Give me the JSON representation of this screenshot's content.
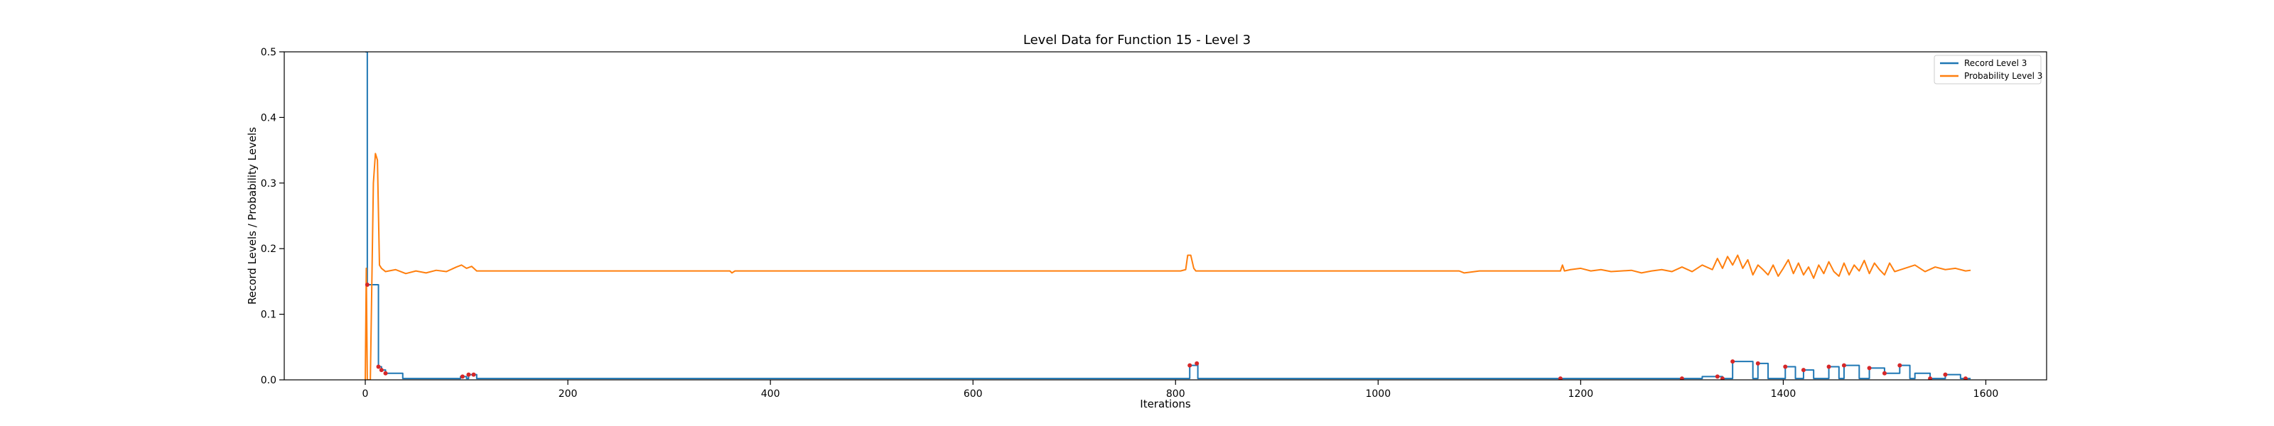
{
  "chart_data": {
    "type": "line",
    "title": "Level Data for Function 15 - Level 3",
    "xlabel": "Iterations",
    "ylabel": "Record Levels / Probability Levels",
    "xlim": [
      -80,
      1660
    ],
    "ylim": [
      0,
      0.5
    ],
    "xticks": [
      0,
      200,
      400,
      600,
      800,
      1000,
      1200,
      1400,
      1600
    ],
    "yticks": [
      0.0,
      0.1,
      0.2,
      0.3,
      0.4,
      0.5
    ],
    "xtick_labels": [
      "0",
      "200",
      "400",
      "600",
      "800",
      "1000",
      "1200",
      "1400",
      "1600"
    ],
    "ytick_labels": [
      "0.0",
      "0.1",
      "0.2",
      "0.3",
      "0.4",
      "0.5"
    ],
    "grid": false,
    "legend_position": "top-right",
    "series": [
      {
        "name": "Record Level 3",
        "color": "#1f77b4",
        "style": "step",
        "x": [
          0,
          1,
          2,
          3,
          12,
          13,
          14,
          16,
          18,
          20,
          22,
          35,
          37,
          40,
          60,
          80,
          90,
          94,
          96,
          100,
          102,
          107,
          110,
          140,
          400,
          800,
          812,
          814,
          818,
          821,
          822,
          900,
          1100,
          1180,
          1190,
          1192,
          1300,
          1320,
          1335,
          1340,
          1345,
          1350,
          1365,
          1370,
          1375,
          1380,
          1385,
          1400,
          1402,
          1408,
          1412,
          1418,
          1420,
          1422,
          1430,
          1435,
          1445,
          1450,
          1455,
          1460,
          1470,
          1475,
          1485,
          1490,
          1500,
          1505,
          1515,
          1520,
          1525,
          1530,
          1535,
          1545,
          1550,
          1560,
          1570,
          1575,
          1580,
          1585
        ],
        "y": [
          0.5,
          0.5,
          0.145,
          0.145,
          0.145,
          0.02,
          0.02,
          0.015,
          0.015,
          0.01,
          0.01,
          0.01,
          0.002,
          0.002,
          0.002,
          0.002,
          0.002,
          0.005,
          0.005,
          0.002,
          0.008,
          0.008,
          0.002,
          0.002,
          0.002,
          0.002,
          0.002,
          0.022,
          0.022,
          0.025,
          0.002,
          0.002,
          0.002,
          0.002,
          0.002,
          0.002,
          0.002,
          0.005,
          0.005,
          0.002,
          0.002,
          0.028,
          0.028,
          0.002,
          0.025,
          0.025,
          0.002,
          0.002,
          0.02,
          0.02,
          0.002,
          0.002,
          0.015,
          0.015,
          0.002,
          0.002,
          0.02,
          0.02,
          0.002,
          0.022,
          0.022,
          0.002,
          0.018,
          0.018,
          0.01,
          0.01,
          0.022,
          0.022,
          0.002,
          0.01,
          0.01,
          0.002,
          0.002,
          0.008,
          0.008,
          0.002,
          0.002,
          0.002
        ]
      },
      {
        "name": "Probability Level 3",
        "color": "#ff7f0e",
        "style": "line",
        "x": [
          0,
          1,
          2,
          5,
          8,
          10,
          12,
          14,
          16,
          20,
          30,
          40,
          50,
          60,
          70,
          80,
          90,
          95,
          100,
          105,
          110,
          150,
          200,
          300,
          360,
          362,
          365,
          400,
          500,
          600,
          700,
          800,
          805,
          810,
          812,
          815,
          818,
          820,
          825,
          900,
          1000,
          1080,
          1085,
          1090,
          1100,
          1150,
          1180,
          1182,
          1184,
          1190,
          1200,
          1210,
          1220,
          1230,
          1240,
          1250,
          1260,
          1270,
          1280,
          1290,
          1300,
          1310,
          1320,
          1330,
          1335,
          1340,
          1345,
          1350,
          1355,
          1360,
          1365,
          1370,
          1375,
          1380,
          1385,
          1390,
          1395,
          1400,
          1405,
          1410,
          1415,
          1420,
          1425,
          1430,
          1435,
          1440,
          1445,
          1450,
          1455,
          1460,
          1465,
          1470,
          1475,
          1480,
          1485,
          1490,
          1495,
          1500,
          1505,
          1510,
          1520,
          1530,
          1540,
          1550,
          1560,
          1570,
          1580,
          1585
        ],
        "y": [
          0.0,
          0.17,
          0.0,
          0.0,
          0.3,
          0.345,
          0.335,
          0.175,
          0.17,
          0.165,
          0.168,
          0.162,
          0.166,
          0.163,
          0.167,
          0.165,
          0.172,
          0.175,
          0.17,
          0.173,
          0.166,
          0.166,
          0.166,
          0.166,
          0.166,
          0.163,
          0.166,
          0.166,
          0.166,
          0.166,
          0.166,
          0.166,
          0.166,
          0.168,
          0.19,
          0.19,
          0.17,
          0.166,
          0.166,
          0.166,
          0.166,
          0.166,
          0.163,
          0.164,
          0.166,
          0.166,
          0.166,
          0.175,
          0.166,
          0.168,
          0.17,
          0.166,
          0.168,
          0.165,
          0.166,
          0.167,
          0.163,
          0.166,
          0.168,
          0.165,
          0.172,
          0.165,
          0.175,
          0.168,
          0.185,
          0.17,
          0.188,
          0.175,
          0.19,
          0.17,
          0.183,
          0.16,
          0.175,
          0.168,
          0.16,
          0.175,
          0.158,
          0.17,
          0.183,
          0.162,
          0.178,
          0.16,
          0.172,
          0.155,
          0.175,
          0.162,
          0.18,
          0.165,
          0.158,
          0.178,
          0.16,
          0.175,
          0.166,
          0.182,
          0.162,
          0.178,
          0.168,
          0.16,
          0.178,
          0.165,
          0.17,
          0.175,
          0.165,
          0.172,
          0.168,
          0.17,
          0.166,
          0.167
        ]
      }
    ],
    "markers": {
      "color": "#d62728",
      "x": [
        2,
        13,
        16,
        20,
        96,
        102,
        107,
        814,
        821,
        1180,
        1300,
        1335,
        1340,
        1350,
        1375,
        1402,
        1420,
        1445,
        1460,
        1485,
        1500,
        1515,
        1545,
        1560,
        1580
      ]
    }
  }
}
